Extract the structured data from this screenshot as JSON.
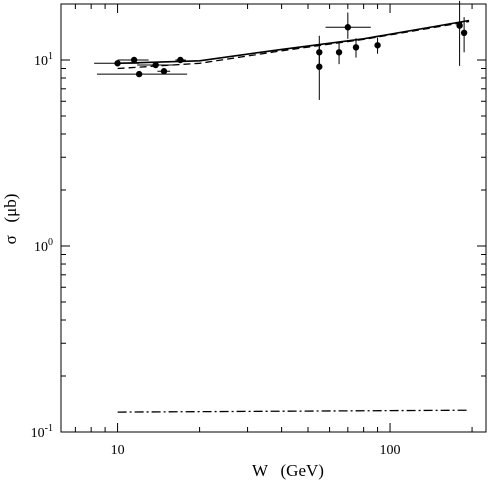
{
  "chart_data": {
    "type": "scatter",
    "xlabel": "W   (GeV)",
    "ylabel": "σ   (μb)",
    "xscale": "log",
    "yscale": "log",
    "xlim": [
      6.2,
      225
    ],
    "ylim": [
      0.1,
      20
    ],
    "x_ticks": [
      {
        "value": 10,
        "label": "10"
      },
      {
        "value": 100,
        "label": "100"
      }
    ],
    "y_ticks": [
      {
        "value": 0.1,
        "base": "10",
        "exp": "-1"
      },
      {
        "value": 1,
        "base": "10",
        "exp": "0"
      },
      {
        "value": 10,
        "base": "10",
        "exp": "1"
      }
    ],
    "x_minor_ticks": [
      7,
      8,
      9,
      20,
      30,
      40,
      50,
      60,
      70,
      80,
      90,
      200
    ],
    "y_minor_ticks": [
      0.2,
      0.3,
      0.4,
      0.5,
      0.6,
      0.7,
      0.8,
      0.9,
      2,
      3,
      4,
      5,
      6,
      7,
      8,
      9
    ],
    "series": [
      {
        "style": "solid",
        "x": [
          10,
          20,
          40,
          80,
          195
        ],
        "y": [
          9.6,
          9.9,
          11.4,
          13.0,
          16.3
        ]
      },
      {
        "style": "dashed",
        "x": [
          10,
          20,
          40,
          80,
          195
        ],
        "y": [
          9.0,
          9.6,
          11.2,
          12.9,
          16.1
        ]
      },
      {
        "style": "dashdot",
        "x": [
          10,
          195
        ],
        "y": [
          0.128,
          0.131
        ]
      }
    ],
    "points": [
      {
        "x": 10.0,
        "y": 9.6,
        "xerr": [
          1.8,
          2.0
        ],
        "yerr": [
          0.3,
          0.3
        ]
      },
      {
        "x": 11.5,
        "y": 10.0,
        "xerr": [
          1.5,
          1.5
        ],
        "yerr": [
          0.3,
          0.3
        ]
      },
      {
        "x": 12.0,
        "y": 8.4,
        "xerr": [
          3.6,
          6.0
        ],
        "yerr": [
          0.3,
          0.3
        ]
      },
      {
        "x": 13.8,
        "y": 9.4,
        "xerr": [
          2.0,
          2.5
        ],
        "yerr": [
          0.3,
          0.3
        ]
      },
      {
        "x": 14.8,
        "y": 8.7,
        "xerr": [
          0.8,
          0.8
        ],
        "yerr": [
          0.3,
          0.3
        ]
      },
      {
        "x": 17.0,
        "y": 10.0,
        "xerr": [
          0.7,
          0.8
        ],
        "yerr": [
          0.3,
          0.3
        ]
      },
      {
        "x": 55.0,
        "y": 11.0,
        "xerr": [
          0,
          0
        ],
        "yerr": [
          1.5,
          2.5
        ]
      },
      {
        "x": 55.0,
        "y": 9.2,
        "xerr": [
          0,
          0
        ],
        "yerr": [
          3.1,
          2.6
        ]
      },
      {
        "x": 65.0,
        "y": 11.0,
        "xerr": [
          0,
          0
        ],
        "yerr": [
          1.5,
          1.5
        ]
      },
      {
        "x": 70.0,
        "y": 15.0,
        "xerr": [
          12,
          15
        ],
        "yerr": [
          2.0,
          3.0
        ]
      },
      {
        "x": 75.0,
        "y": 11.7,
        "xerr": [
          0,
          0
        ],
        "yerr": [
          1.4,
          1.4
        ]
      },
      {
        "x": 90.0,
        "y": 12.0,
        "xerr": [
          0,
          0
        ],
        "yerr": [
          1.2,
          1.2
        ]
      },
      {
        "x": 180.0,
        "y": 15.3,
        "xerr": [
          0,
          0
        ],
        "yerr": [
          6.0,
          5.5
        ]
      },
      {
        "x": 187.0,
        "y": 14.0,
        "xerr": [
          0,
          0
        ],
        "yerr": [
          3.0,
          3.0
        ]
      }
    ]
  }
}
